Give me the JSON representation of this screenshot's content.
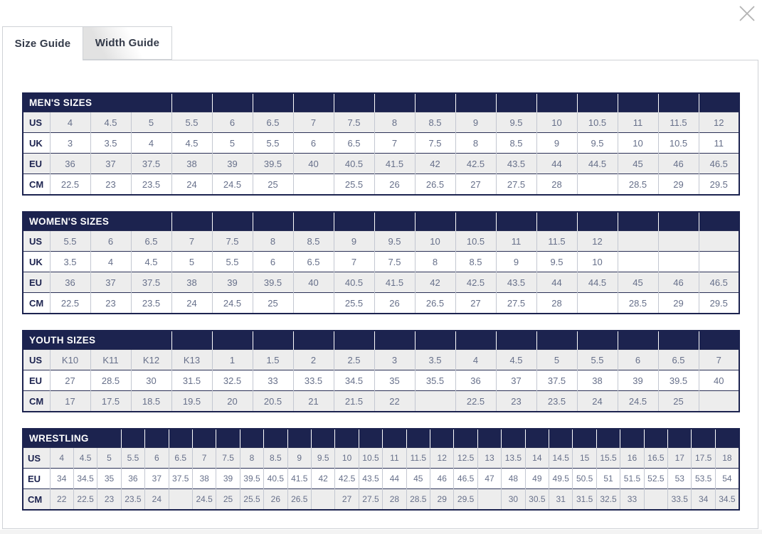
{
  "window": {
    "close_icon": "close-x"
  },
  "tabs": [
    {
      "label": "Size Guide",
      "active": true
    },
    {
      "label": "Width Guide",
      "active": false
    }
  ],
  "colors": {
    "header_navy": "#1c234f",
    "cell_text": "#67708a",
    "stripe_gray": "#ededed",
    "column_border": "#c3c7d1",
    "panel_border": "#cfd2d6",
    "close_gray": "#b3b3b3"
  },
  "tables": [
    {
      "title": "MEN'S SIZES",
      "rows": [
        {
          "label": "US",
          "values": [
            "4",
            "4.5",
            "5",
            "5.5",
            "6",
            "6.5",
            "7",
            "7.5",
            "8",
            "8.5",
            "9",
            "9.5",
            "10",
            "10.5",
            "11",
            "11.5",
            "12"
          ]
        },
        {
          "label": "UK",
          "values": [
            "3",
            "3.5",
            "4",
            "4.5",
            "5",
            "5.5",
            "6",
            "6.5",
            "7",
            "7.5",
            "8",
            "8.5",
            "9",
            "9.5",
            "10",
            "10.5",
            "11"
          ]
        },
        {
          "label": "EU",
          "values": [
            "36",
            "37",
            "37.5",
            "38",
            "39",
            "39.5",
            "40",
            "40.5",
            "41.5",
            "42",
            "42.5",
            "43.5",
            "44",
            "44.5",
            "45",
            "46",
            "46.5"
          ]
        },
        {
          "label": "CM",
          "values": [
            "22.5",
            "23",
            "23.5",
            "24",
            "24.5",
            "25",
            "",
            "25.5",
            "26",
            "26.5",
            "27",
            "27.5",
            "28",
            "",
            "28.5",
            "29",
            "29.5"
          ]
        }
      ]
    },
    {
      "title": "WOMEN'S SIZES",
      "rows": [
        {
          "label": "US",
          "values": [
            "5.5",
            "6",
            "6.5",
            "7",
            "7.5",
            "8",
            "8.5",
            "9",
            "9.5",
            "10",
            "10.5",
            "11",
            "11.5",
            "12",
            "",
            "",
            ""
          ]
        },
        {
          "label": "UK",
          "values": [
            "3.5",
            "4",
            "4.5",
            "5",
            "5.5",
            "6",
            "6.5",
            "7",
            "7.5",
            "8",
            "8.5",
            "9",
            "9.5",
            "10",
            "",
            "",
            ""
          ]
        },
        {
          "label": "EU",
          "values": [
            "36",
            "37",
            "37.5",
            "38",
            "39",
            "39.5",
            "40",
            "40.5",
            "41.5",
            "42",
            "42.5",
            "43.5",
            "44",
            "44.5",
            "45",
            "46",
            "46.5"
          ]
        },
        {
          "label": "CM",
          "values": [
            "22.5",
            "23",
            "23.5",
            "24",
            "24.5",
            "25",
            "",
            "25.5",
            "26",
            "26.5",
            "27",
            "27.5",
            "28",
            "",
            "28.5",
            "29",
            "29.5"
          ]
        }
      ]
    },
    {
      "title": "YOUTH SIZES",
      "rows": [
        {
          "label": "US",
          "values": [
            "K10",
            "K11",
            "K12",
            "K13",
            "1",
            "1.5",
            "2",
            "2.5",
            "3",
            "3.5",
            "4",
            "4.5",
            "5",
            "5.5",
            "6",
            "6.5",
            "7"
          ]
        },
        {
          "label": "EU",
          "values": [
            "27",
            "28.5",
            "30",
            "31.5",
            "32.5",
            "33",
            "33.5",
            "34.5",
            "35",
            "35.5",
            "36",
            "37",
            "37.5",
            "38",
            "39",
            "39.5",
            "40"
          ]
        },
        {
          "label": "CM",
          "values": [
            "17",
            "17.5",
            "18.5",
            "19.5",
            "20",
            "20.5",
            "21",
            "21.5",
            "22",
            "",
            "22.5",
            "23",
            "23.5",
            "24",
            "24.5",
            "25",
            ""
          ]
        }
      ]
    },
    {
      "title": "WRESTLING",
      "rows": [
        {
          "label": "US",
          "values": [
            "4",
            "4.5",
            "5",
            "5.5",
            "6",
            "6.5",
            "7",
            "7.5",
            "8",
            "8.5",
            "9",
            "9.5",
            "10",
            "10.5",
            "11",
            "11.5",
            "12",
            "12.5",
            "13",
            "13.5",
            "14",
            "14.5",
            "15",
            "15.5",
            "16",
            "16.5",
            "17",
            "17.5",
            "18"
          ]
        },
        {
          "label": "EU",
          "values": [
            "34",
            "34.5",
            "35",
            "36",
            "37",
            "37.5",
            "38",
            "39",
            "39.5",
            "40.5",
            "41.5",
            "42",
            "42.5",
            "43.5",
            "44",
            "45",
            "46",
            "46.5",
            "47",
            "48",
            "49",
            "49.5",
            "50.5",
            "51",
            "51.5",
            "52.5",
            "53",
            "53.5",
            "54"
          ]
        },
        {
          "label": "CM",
          "values": [
            "22",
            "22.5",
            "23",
            "23.5",
            "24",
            "",
            "24.5",
            "25",
            "25.5",
            "26",
            "26.5",
            "",
            "27",
            "27.5",
            "28",
            "28.5",
            "29",
            "29.5",
            "",
            "30",
            "30.5",
            "31",
            "31.5",
            "32.5",
            "33",
            "",
            "33.5",
            "34",
            "34.5"
          ]
        }
      ]
    }
  ]
}
